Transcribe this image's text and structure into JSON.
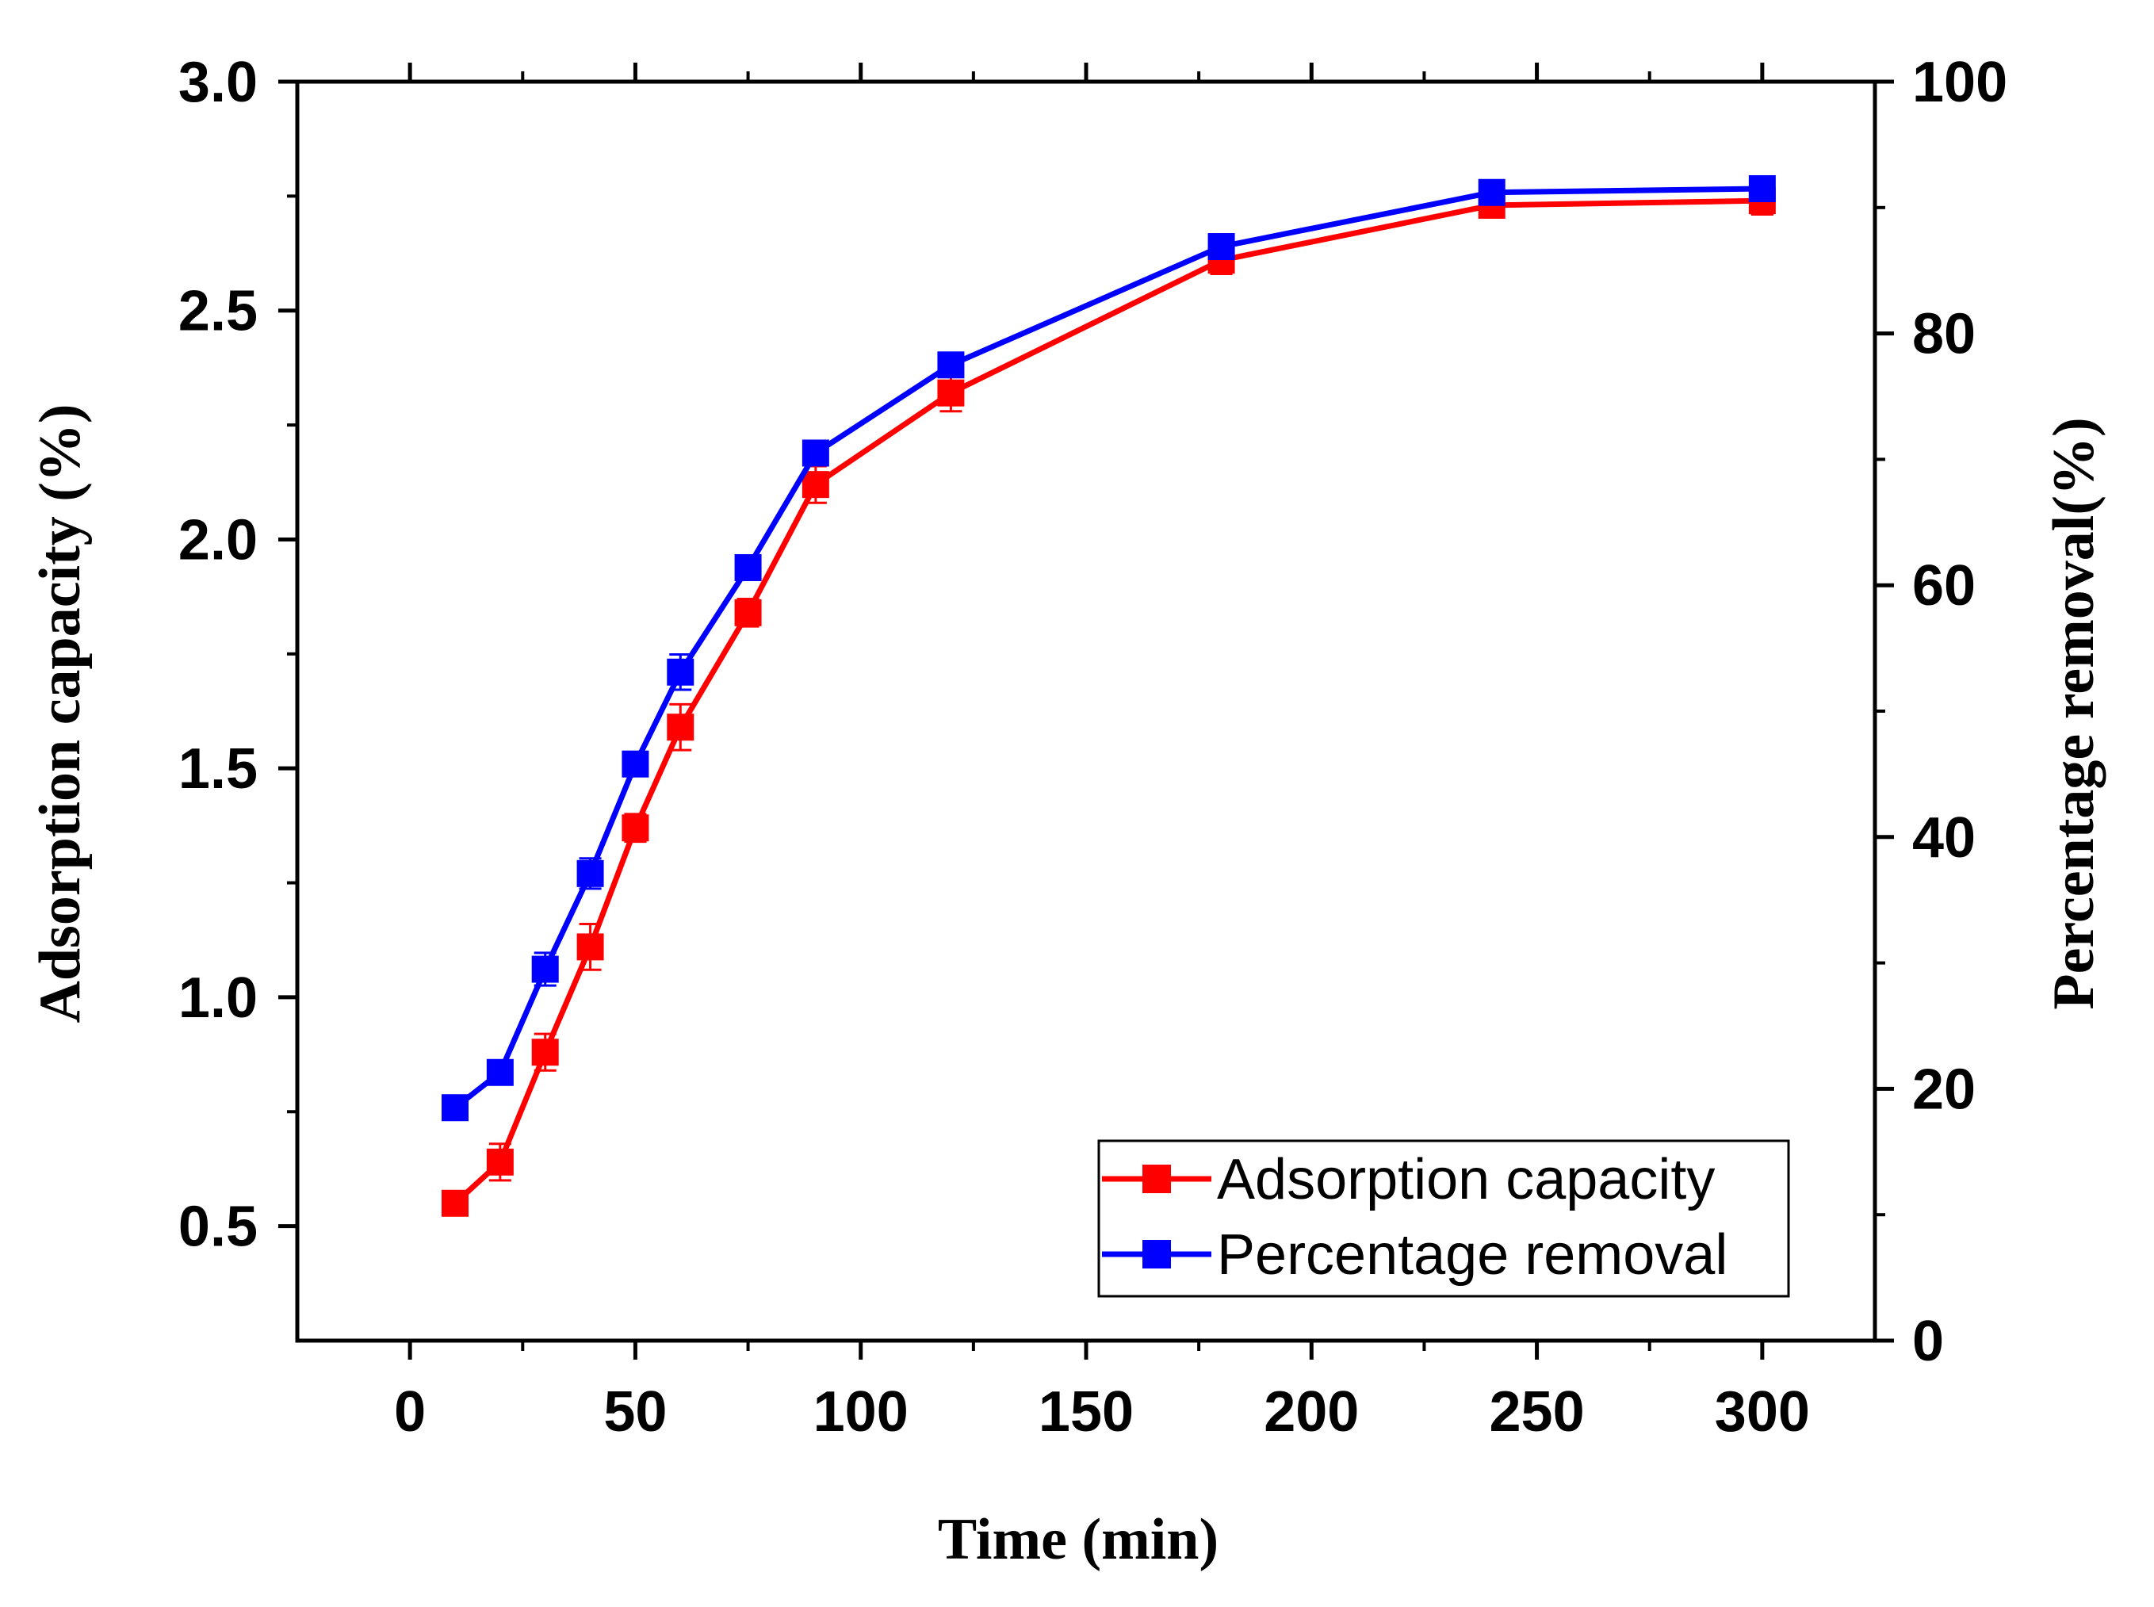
{
  "chart_data": {
    "type": "line",
    "title": "",
    "xlabel": "Time (min)",
    "ylabel_left": "Adsorption capacity (%)",
    "ylabel_right": "Percentage removal(%)",
    "xlim": [
      -25,
      325
    ],
    "ylim_left": [
      0.25,
      3.0
    ],
    "ylim_right": [
      0,
      100
    ],
    "x_ticks": [
      0,
      50,
      100,
      150,
      200,
      250,
      300
    ],
    "x_tick_labels": [
      "0",
      "50",
      "100",
      "150",
      "200",
      "250",
      "300"
    ],
    "y_left_ticks": [
      0.5,
      1.0,
      1.5,
      2.0,
      2.5,
      3.0
    ],
    "y_left_tick_labels": [
      "0.5",
      "1.0",
      "1.5",
      "2.0",
      "2.5",
      "3.0"
    ],
    "y_right_ticks": [
      0,
      20,
      40,
      60,
      80,
      100
    ],
    "y_right_tick_labels": [
      "0",
      "20",
      "40",
      "60",
      "80",
      "100"
    ],
    "legend_position": "bottom-right",
    "grid": false,
    "series": [
      {
        "name": "Adsorption capacity",
        "axis": "left",
        "color": "#ff0000",
        "x": [
          10,
          20,
          30,
          40,
          50,
          60,
          75,
          90,
          120,
          180,
          240,
          300
        ],
        "values": [
          0.55,
          0.64,
          0.88,
          1.11,
          1.37,
          1.59,
          1.84,
          2.12,
          2.32,
          2.61,
          2.73,
          2.74
        ],
        "errors": [
          0.02,
          0.04,
          0.04,
          0.05,
          0.03,
          0.05,
          0.03,
          0.04,
          0.04,
          0.03,
          0.02,
          0.03
        ]
      },
      {
        "name": "Percentage removal",
        "axis": "right",
        "color": "#0000ff",
        "x": [
          10,
          20,
          30,
          40,
          50,
          60,
          75,
          90,
          120,
          180,
          240,
          300
        ],
        "values": [
          18.5,
          21.3,
          29.5,
          37.1,
          45.8,
          53.1,
          61.4,
          70.5,
          77.5,
          86.9,
          91.2,
          91.5
        ],
        "errors": [
          0.6,
          0.9,
          1.3,
          1.2,
          0.8,
          1.4,
          0.9,
          0.8,
          0.8,
          0.7,
          0.6,
          0.6
        ]
      }
    ]
  }
}
